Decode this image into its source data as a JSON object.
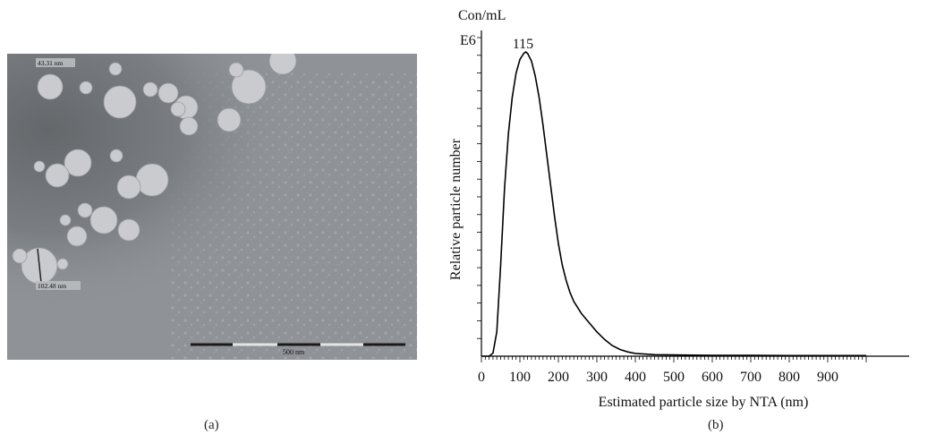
{
  "panels": {
    "a": {
      "caption": "(a)",
      "micrograph": {
        "scale_label_1": "43.31 nm",
        "scale_label_2": "102.48 nm",
        "scalebar_label": "500 nm",
        "colors": {
          "background": "#8f9296",
          "dark_region": "#6c7073",
          "particle": "#c9cbce"
        }
      }
    },
    "b": {
      "caption": "(b)"
    }
  },
  "chart_data": {
    "type": "line",
    "title": "",
    "xlabel": "Estimated particle size by NTA (nm)",
    "ylabel": "Relative particle number",
    "yunit_top": "Con/mL",
    "yunit_multiplier": "E6",
    "peak_label": "115",
    "peak_x": 115,
    "xlim": [
      0,
      1000
    ],
    "ylim": [
      0,
      1
    ],
    "x_ticks": [
      "0",
      "100",
      "200",
      "300",
      "400",
      "500",
      "600",
      "700",
      "800",
      "900"
    ],
    "x_tick_values": [
      0,
      100,
      200,
      300,
      400,
      500,
      600,
      700,
      800,
      900
    ],
    "grid": false,
    "series": [
      {
        "color": "#000000",
        "x": [
          20,
          30,
          40,
          50,
          60,
          70,
          80,
          90,
          100,
          110,
          115,
          120,
          130,
          140,
          150,
          160,
          170,
          180,
          190,
          200,
          210,
          220,
          230,
          240,
          250,
          260,
          280,
          300,
          320,
          340,
          360,
          380,
          400,
          450,
          500,
          600,
          700,
          800,
          900,
          1000
        ],
        "y": [
          0.0,
          0.01,
          0.08,
          0.3,
          0.55,
          0.73,
          0.85,
          0.93,
          0.975,
          0.995,
          1.0,
          0.995,
          0.97,
          0.92,
          0.85,
          0.76,
          0.66,
          0.56,
          0.46,
          0.37,
          0.3,
          0.25,
          0.21,
          0.18,
          0.16,
          0.14,
          0.11,
          0.08,
          0.055,
          0.035,
          0.022,
          0.014,
          0.009,
          0.005,
          0.004,
          0.003,
          0.003,
          0.002,
          0.002,
          0.002
        ]
      }
    ]
  }
}
